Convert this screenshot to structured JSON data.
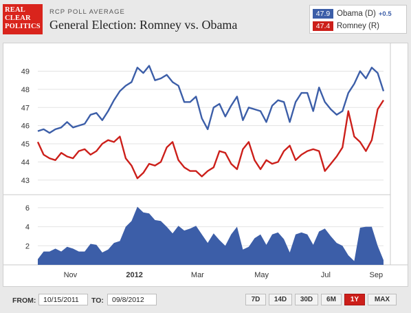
{
  "logo": {
    "line1": "REAL",
    "line2": "CLEAR",
    "line3": "POLITICS"
  },
  "header": {
    "kicker": "RCP POLL AVERAGE",
    "title": "General Election: Romney vs. Obama"
  },
  "legend": [
    {
      "value": "47.9",
      "label": "Obama (D)",
      "change": "+0.5",
      "color": "#3c5ea8"
    },
    {
      "value": "47.4",
      "label": "Romney (R)",
      "change": "",
      "color": "#cc1f1a"
    }
  ],
  "footer": {
    "from_label": "FROM:",
    "from_value": "10/15/2011",
    "to_label": "TO:",
    "to_value": "09/8/2012",
    "buttons": [
      "7D",
      "14D",
      "30D",
      "6M",
      "1Y",
      "MAX"
    ],
    "active_button": "1Y"
  },
  "chart_data": [
    {
      "type": "line",
      "x_start": "10/15/2011",
      "x_end": "09/8/2012",
      "x_tick_labels": [
        "Nov",
        "2012",
        "Mar",
        "May",
        "Jul",
        "Sep"
      ],
      "ylim": [
        42.5,
        49.7
      ],
      "yticks": [
        43,
        44,
        45,
        46,
        47,
        48,
        49
      ],
      "series": [
        {
          "name": "Obama (D)",
          "color": "#3c5ea8",
          "values": [
            45.7,
            45.8,
            45.6,
            45.8,
            45.9,
            46.2,
            45.9,
            46.0,
            46.1,
            46.6,
            46.7,
            46.3,
            46.8,
            47.4,
            47.9,
            48.2,
            48.4,
            49.2,
            48.9,
            49.3,
            48.5,
            48.6,
            48.8,
            48.4,
            48.2,
            47.3,
            47.3,
            47.6,
            46.4,
            45.8,
            47.0,
            47.2,
            46.5,
            47.1,
            47.6,
            46.3,
            47.0,
            46.9,
            46.8,
            46.2,
            47.1,
            47.4,
            47.3,
            46.2,
            47.3,
            47.8,
            47.8,
            46.8,
            48.1,
            47.3,
            46.9,
            46.6,
            46.8,
            47.8,
            48.3,
            49.0,
            48.6,
            49.2,
            48.9,
            47.9
          ]
        },
        {
          "name": "Romney (R)",
          "color": "#cc1f1a",
          "values": [
            45.1,
            44.4,
            44.2,
            44.1,
            44.5,
            44.3,
            44.2,
            44.6,
            44.7,
            44.4,
            44.6,
            45.0,
            45.2,
            45.1,
            45.4,
            44.2,
            43.8,
            43.1,
            43.4,
            43.9,
            43.8,
            44.0,
            44.8,
            45.1,
            44.1,
            43.7,
            43.5,
            43.5,
            43.2,
            43.5,
            43.7,
            44.6,
            44.5,
            43.9,
            43.6,
            44.7,
            45.1,
            44.1,
            43.6,
            44.1,
            43.9,
            44.0,
            44.6,
            44.9,
            44.1,
            44.4,
            44.6,
            44.7,
            44.6,
            43.5,
            43.9,
            44.3,
            44.8,
            46.8,
            45.4,
            45.1,
            44.6,
            45.2,
            46.9,
            47.4
          ]
        }
      ]
    },
    {
      "type": "area",
      "x_start": "10/15/2011",
      "x_end": "09/8/2012",
      "ylim": [
        0,
        7
      ],
      "yticks": [
        2,
        4,
        6
      ],
      "series": [
        {
          "name": "spread",
          "color": "#3c5ea8",
          "values": [
            0.6,
            1.4,
            1.4,
            1.7,
            1.4,
            1.9,
            1.7,
            1.4,
            1.4,
            2.2,
            2.1,
            1.3,
            1.6,
            2.3,
            2.5,
            4.0,
            4.6,
            6.1,
            5.5,
            5.4,
            4.7,
            4.6,
            4.0,
            3.3,
            4.1,
            3.6,
            3.8,
            4.1,
            3.2,
            2.3,
            3.3,
            2.6,
            2.0,
            3.2,
            4.0,
            1.6,
            1.9,
            2.8,
            3.2,
            2.1,
            3.2,
            3.4,
            2.7,
            1.3,
            3.2,
            3.4,
            3.2,
            2.1,
            3.5,
            3.8,
            3.0,
            2.3,
            2.0,
            1.0,
            0.4,
            3.9,
            4.0,
            4.0,
            2.0,
            0.5
          ]
        }
      ]
    }
  ]
}
